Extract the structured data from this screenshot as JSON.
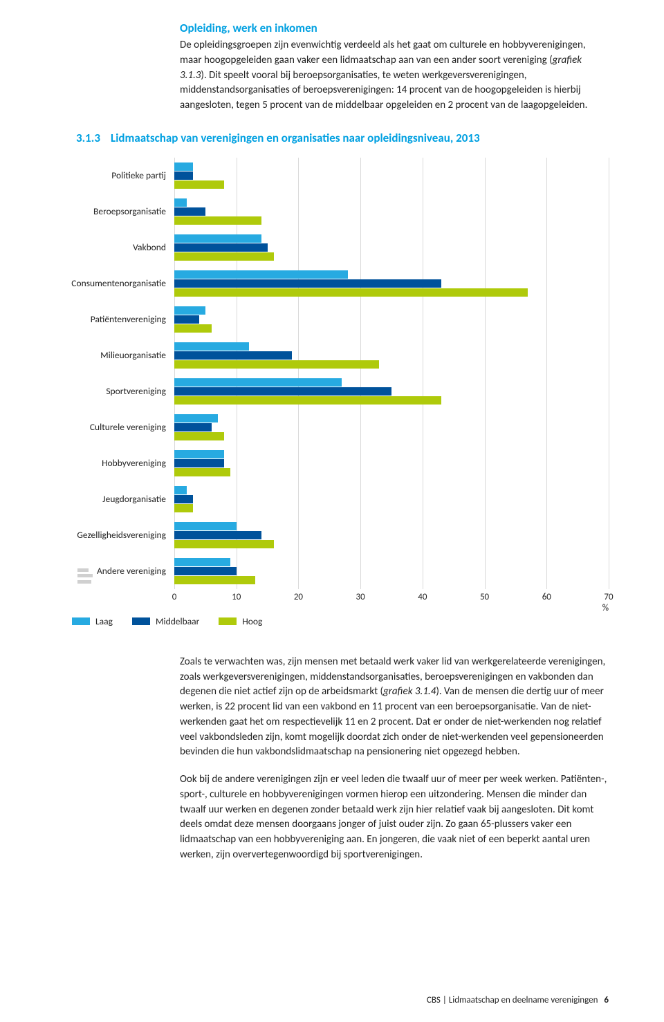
{
  "intro": {
    "heading": "Opleiding, werk en inkomen",
    "para1a": "De opleidingsgroepen zijn evenwichtig verdeeld als het gaat om culturele en hobbyverenigingen, maar hoogopgeleiden gaan vaker een lidmaatschap aan van een ander soort vereniging (",
    "para1_italic": "grafiek 3.1.3",
    "para1b": "). Dit speelt vooral bij beroepsorganisaties, te weten werkgeversverenigingen, middenstandsorganisaties of beroepsverenigingen: 14 procent van de hoogopgeleiden is hierbij aangesloten, tegen 5 procent van de middelbaar opgeleiden en 2 procent van de laagopgeleiden."
  },
  "chart": {
    "number": "3.1.3",
    "title": "Lidmaatschap van verenigingen en organisaties naar opleidingsniveau, 2013",
    "type": "bar",
    "x_max": 70,
    "x_tick_step": 10,
    "x_ticks": [
      0,
      10,
      20,
      30,
      40,
      50,
      60,
      70
    ],
    "unit": "%",
    "grid_color": "#d9d9d9",
    "series": [
      {
        "key": "laag",
        "label": "Laag",
        "color": "#27aae1"
      },
      {
        "key": "middelbaar",
        "label": "Middelbaar",
        "color": "#00529b"
      },
      {
        "key": "hoog",
        "label": "Hoog",
        "color": "#afca0b"
      }
    ],
    "categories": [
      {
        "label": "Politieke partij",
        "values": {
          "laag": 3,
          "middelbaar": 3,
          "hoog": 8
        }
      },
      {
        "label": "Beroepsorganisatie",
        "values": {
          "laag": 2,
          "middelbaar": 5,
          "hoog": 14
        }
      },
      {
        "label": "Vakbond",
        "values": {
          "laag": 14,
          "middelbaar": 15,
          "hoog": 16
        }
      },
      {
        "label": "Consumentenorganisatie",
        "values": {
          "laag": 28,
          "middelbaar": 43,
          "hoog": 57
        }
      },
      {
        "label": "Patiëntenvereniging",
        "values": {
          "laag": 5,
          "middelbaar": 4,
          "hoog": 6
        }
      },
      {
        "label": "Milieuorganisatie",
        "values": {
          "laag": 12,
          "middelbaar": 19,
          "hoog": 33
        }
      },
      {
        "label": "Sportvereniging",
        "values": {
          "laag": 27,
          "middelbaar": 35,
          "hoog": 43
        }
      },
      {
        "label": "Culturele vereniging",
        "values": {
          "laag": 7,
          "middelbaar": 6,
          "hoog": 8
        }
      },
      {
        "label": "Hobbyvereniging",
        "values": {
          "laag": 8,
          "middelbaar": 8,
          "hoog": 9
        }
      },
      {
        "label": "Jeugdorganisatie",
        "values": {
          "laag": 2,
          "middelbaar": 3,
          "hoog": 3
        }
      },
      {
        "label": "Gezelligheidsvereniging",
        "values": {
          "laag": 10,
          "middelbaar": 14,
          "hoog": 16
        }
      },
      {
        "label": "Andere vereniging",
        "values": {
          "laag": 9,
          "middelbaar": 10,
          "hoog": 13
        }
      }
    ]
  },
  "below": {
    "p1a": "Zoals te verwachten was, zijn mensen met betaald werk vaker lid van werkgerelateerde verenigingen, zoals werkgeversverenigingen, middenstandsorganisaties, beroepsverenigingen en vakbonden dan degenen die niet actief zijn op de arbeidsmarkt (",
    "p1_italic": "grafiek 3.1.4",
    "p1b": "). Van de mensen die dertig uur of meer werken, is 22 procent lid van een vakbond en 11 procent van een beroepsorganisatie. Van de niet-werkenden gaat het om respectievelijk 11 en 2 procent. Dat er onder de niet-werkenden nog relatief veel vakbondsleden zijn, komt mogelijk doordat zich onder de niet-werkenden veel gepensioneerden bevinden die hun vakbondslidmaatschap na pensionering niet opgezegd hebben.",
    "p2": "Ook bij de andere verenigingen zijn er veel leden die twaalf uur of meer per week werken. Patiënten-, sport-, culturele en hobbyverenigingen vormen hierop een uitzondering. Mensen die minder dan twaalf uur werken en degenen zonder betaald werk zijn hier relatief vaak bij aangesloten. Dit komt deels omdat deze mensen doorgaans jonger of juist ouder zijn. Zo gaan 65-plussers vaker een lidmaatschap van een hobbyvereniging aan. En jongeren, die vaak niet of een beperkt aantal uren werken, zijn oververtegenwoordigd bij sportverenigingen."
  },
  "footer": {
    "text": "CBS | Lidmaatschap en deelname verenigingen",
    "page": "6"
  }
}
